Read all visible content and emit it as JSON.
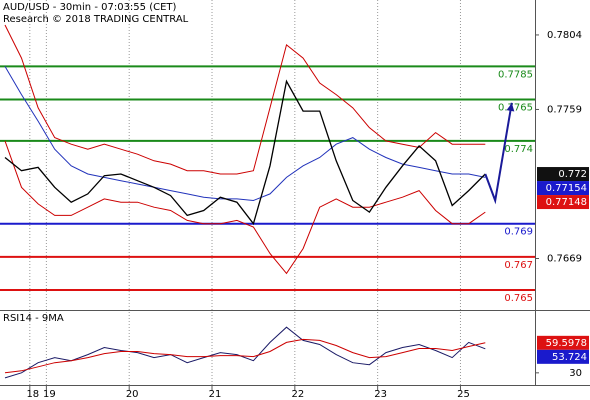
{
  "chart_data": [
    {
      "type": "line",
      "title": "AUD/USD - 30min - 07:03:55 (CET)",
      "subtitle": "Research © 2018 TRADING CENTRAL",
      "x": [
        0,
        1,
        2,
        3,
        4,
        5,
        6,
        7,
        8,
        9,
        10,
        11,
        12,
        13,
        14,
        15,
        16,
        17,
        18,
        19,
        20,
        21,
        22,
        23,
        24,
        25,
        26,
        27,
        28,
        29
      ],
      "xlim": [
        -0.3,
        32
      ],
      "xticks": [
        {
          "value": 1.5,
          "label": "18"
        },
        {
          "value": 2.5,
          "label": "19"
        },
        {
          "value": 7.5,
          "label": "20"
        },
        {
          "value": 12.5,
          "label": "21"
        },
        {
          "value": 17.5,
          "label": "22"
        },
        {
          "value": 22.5,
          "label": "23"
        },
        {
          "value": 27.5,
          "label": "25"
        }
      ],
      "grid": true,
      "ylim": [
        0.76379,
        0.78251
      ],
      "yticks": [
        0.7804,
        0.7759,
        0.7669
      ],
      "series": [
        {
          "color": "#cc0000",
          "values": [
            0.781,
            0.779,
            0.776,
            0.7742,
            0.7738,
            0.7735,
            0.7738,
            0.7735,
            0.7732,
            0.7728,
            0.7726,
            0.7722,
            0.7722,
            0.772,
            0.772,
            0.7722,
            0.776,
            0.7798,
            0.779,
            0.7775,
            0.7768,
            0.776,
            0.7748,
            0.774,
            0.7738,
            0.7736,
            0.7745,
            0.7738,
            0.7738,
            0.7738
          ]
        },
        {
          "color": "#cc0000",
          "values": [
            0.774,
            0.7712,
            0.7702,
            0.7695,
            0.7695,
            0.77,
            0.7705,
            0.7703,
            0.7703,
            0.77,
            0.7698,
            0.7692,
            0.769,
            0.769,
            0.7692,
            0.7688,
            0.7672,
            0.766,
            0.7675,
            0.77,
            0.7705,
            0.77,
            0.77,
            0.7703,
            0.7706,
            0.771,
            0.7698,
            0.769,
            0.769,
            0.7697
          ]
        },
        {
          "color": "#2233bb",
          "values": [
            0.7785,
            0.7768,
            0.7752,
            0.7735,
            0.7725,
            0.772,
            0.7718,
            0.7716,
            0.7714,
            0.7712,
            0.771,
            0.7708,
            0.7706,
            0.7705,
            0.7705,
            0.7704,
            0.7708,
            0.7718,
            0.7725,
            0.773,
            0.7738,
            0.7742,
            0.7735,
            0.773,
            0.7726,
            0.7724,
            0.7722,
            0.772,
            0.772,
            0.7718
          ]
        },
        {
          "color": "#000000",
          "values": [
            0.773,
            0.7722,
            0.7724,
            0.7712,
            0.7703,
            0.7708,
            0.7719,
            0.772,
            0.7716,
            0.7712,
            0.7707,
            0.7695,
            0.7698,
            0.7706,
            0.7703,
            0.769,
            0.7725,
            0.7776,
            0.7758,
            0.7758,
            0.7728,
            0.7704,
            0.7697,
            0.7712,
            0.7725,
            0.7737,
            0.7728,
            0.7701,
            0.771,
            0.772
          ]
        }
      ],
      "levels": [
        {
          "value": 0.7785,
          "color": "#1a8a1a"
        },
        {
          "value": 0.7765,
          "color": "#1a8a1a"
        },
        {
          "value": 0.774,
          "color": "#1a8a1a"
        },
        {
          "value": 0.769,
          "color": "#1a1acc"
        },
        {
          "value": 0.767,
          "color": "#dd1111"
        },
        {
          "value": 0.765,
          "color": "#dd1111"
        }
      ],
      "projection": {
        "color": "#1a1a99",
        "x": [
          29,
          29.6,
          30.6
        ],
        "values": [
          0.772,
          0.7704,
          0.7763
        ]
      },
      "last_labels": [
        {
          "value": 0.772,
          "color": "#111111"
        },
        {
          "value": 0.77154,
          "color": "#1a1acc"
        },
        {
          "value": 0.77148,
          "color": "#dd1111"
        }
      ]
    },
    {
      "type": "line",
      "title": "RSI14 - 9MA",
      "x": [
        0,
        1,
        2,
        3,
        4,
        5,
        6,
        7,
        8,
        9,
        10,
        11,
        12,
        13,
        14,
        15,
        16,
        17,
        18,
        19,
        20,
        21,
        22,
        23,
        24,
        25,
        26,
        27,
        28,
        29
      ],
      "xlim": [
        -0.3,
        32
      ],
      "ylim": [
        18,
        91
      ],
      "yticks": [
        30
      ],
      "series": [
        {
          "color": "#1a1a66",
          "values": [
            25,
            30,
            40,
            45,
            42,
            48,
            55,
            52,
            50,
            45,
            48,
            40,
            45,
            50,
            48,
            42,
            60,
            75,
            62,
            58,
            48,
            40,
            38,
            50,
            55,
            58,
            52,
            45,
            60,
            53.724
          ]
        },
        {
          "color": "#cc0000",
          "values": [
            30,
            32,
            36,
            40,
            42,
            45,
            49,
            51,
            51,
            49,
            48,
            46,
            46,
            47,
            47,
            46,
            51,
            60,
            63,
            62,
            57,
            50,
            45,
            46,
            50,
            54,
            54,
            52,
            56,
            59.5978
          ]
        }
      ],
      "last_labels": [
        {
          "value": 59.5978,
          "color": "#dd1111"
        },
        {
          "value": 53.724,
          "color": "#1a1acc"
        }
      ]
    }
  ]
}
